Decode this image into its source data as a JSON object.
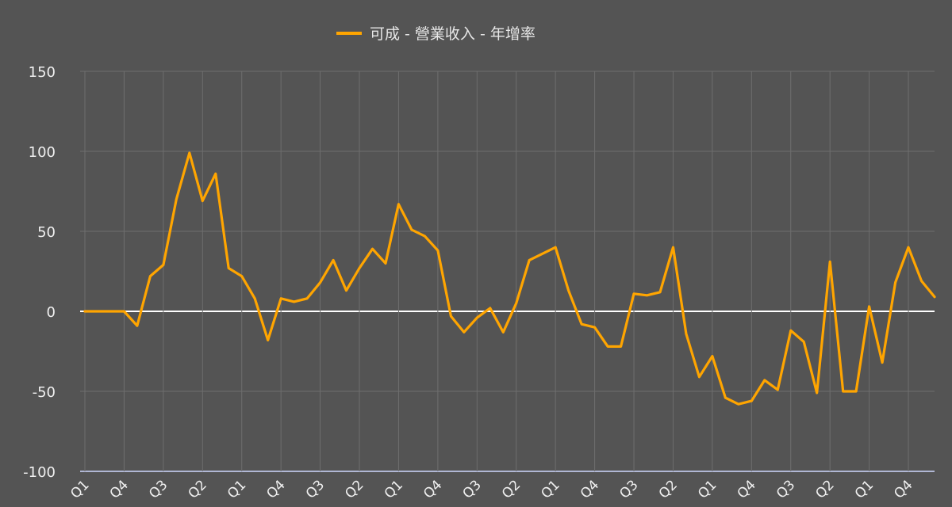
{
  "chart_data": {
    "type": "line",
    "series": [
      {
        "name": "可成 - 營業收入 - 年增率",
        "color": "#FFA500",
        "values": [
          0,
          0,
          0,
          0,
          -9,
          22,
          29,
          70,
          99,
          69,
          86,
          27,
          22,
          8,
          -18,
          8,
          6,
          8,
          18,
          32,
          13,
          27,
          39,
          30,
          67,
          51,
          47,
          38,
          -3,
          -13,
          -4,
          2,
          -13,
          5,
          32,
          36,
          40,
          13,
          -8,
          -10,
          -22,
          -22,
          11,
          10,
          12,
          40,
          -14,
          -41,
          -28,
          -54,
          -58,
          -56,
          -43,
          -49,
          -12,
          -19,
          -51,
          31,
          -50,
          -50,
          3,
          -32,
          18,
          40,
          19,
          9
        ]
      }
    ],
    "ylim": [
      -100,
      150
    ],
    "yticks": [
      "150",
      "100",
      "50",
      "0",
      "-50",
      "-100"
    ],
    "xticks": [
      "Q1",
      "Q4",
      "Q3",
      "Q2",
      "Q1",
      "Q4",
      "Q3",
      "Q2",
      "Q1",
      "Q4",
      "Q3",
      "Q2",
      "Q1",
      "Q4",
      "Q3",
      "Q2",
      "Q1",
      "Q4",
      "Q3",
      "Q2",
      "Q1",
      "Q4"
    ],
    "grid": true,
    "legend_position": "top-center"
  }
}
